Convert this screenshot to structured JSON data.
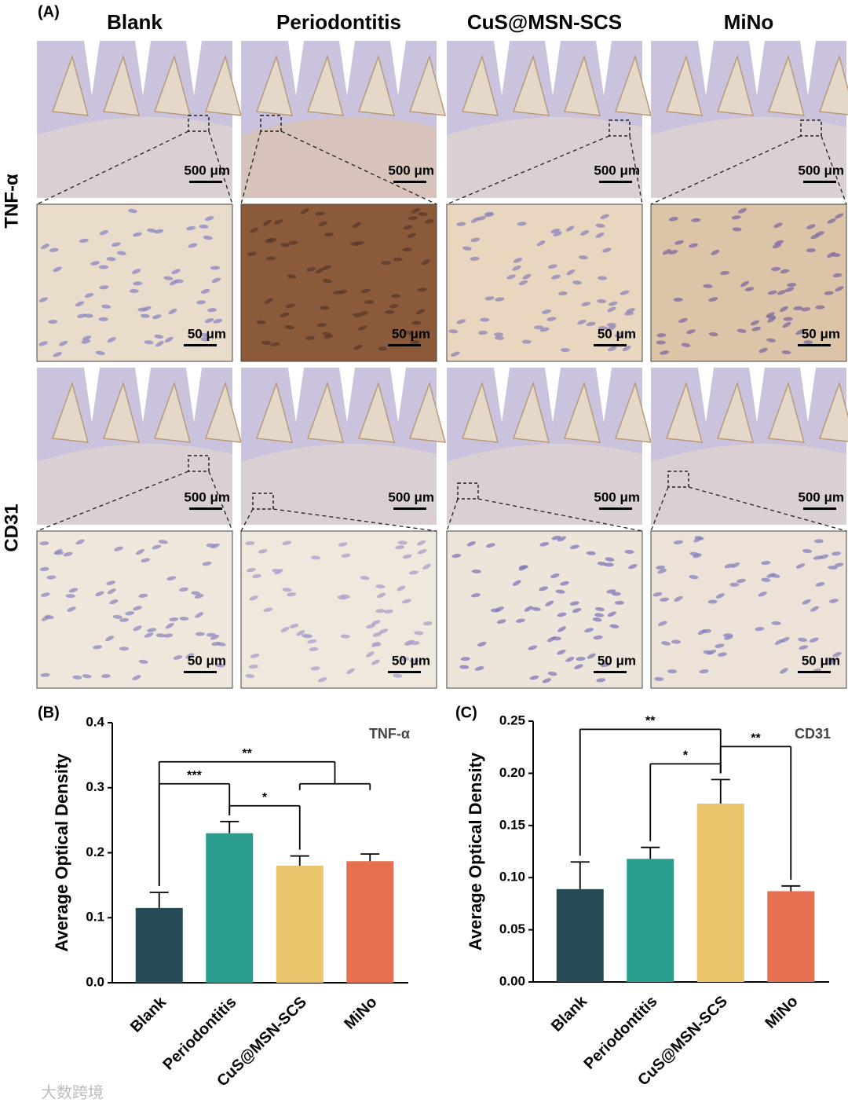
{
  "panel_a": {
    "label": "(A)",
    "columns": [
      "Blank",
      "Periodontitis",
      "CuS@MSN-SCS",
      "MiNo"
    ],
    "rows": [
      "TNF-α",
      "CD31"
    ],
    "scale_overview": "500 μm",
    "scale_zoom": "50 μm"
  },
  "watermark": "大数跨境",
  "chart_data": [
    {
      "type": "bar",
      "panel": "(B)",
      "annotation": "TNF-α",
      "y_label": "Average Optical Density",
      "categories": [
        "Blank",
        "Periodontitis",
        "CuS@MSN-SCS",
        "MiNo"
      ],
      "values": [
        0.115,
        0.23,
        0.18,
        0.187
      ],
      "errors": [
        0.024,
        0.018,
        0.015,
        0.011
      ],
      "colors": [
        "#264b56",
        "#2a9d8f",
        "#e9c46a",
        "#e76f51"
      ],
      "ylim": [
        0,
        0.4
      ],
      "yticks": [
        {
          "value": 0,
          "label": "0.0"
        },
        0.1,
        0.2,
        0.3,
        0.4
      ],
      "comparisons": [
        {
          "label": "*",
          "groups": [
            "Periodontitis",
            "CuS@MSN-SCS"
          ]
        },
        {
          "label": "***",
          "groups": [
            "Blank",
            "Periodontitis"
          ]
        },
        {
          "label": "**",
          "groups": [
            "Blank",
            [
              "CuS@MSN-SCS",
              "MiNo"
            ]
          ]
        }
      ]
    },
    {
      "type": "bar",
      "panel": "(C)",
      "annotation": "CD31",
      "y_label": "Average Optical Density",
      "categories": [
        "Blank",
        "Periodontitis",
        "CuS@MSN-SCS",
        "MiNo"
      ],
      "values": [
        0.089,
        0.118,
        0.171,
        0.087
      ],
      "errors": [
        0.026,
        0.011,
        0.023,
        0.005
      ],
      "colors": [
        "#264b56",
        "#2a9d8f",
        "#e9c46a",
        "#e76f51"
      ],
      "ylim": [
        0,
        0.25
      ],
      "yticks": [
        {
          "value": 0,
          "label": "0.00"
        },
        0.05,
        {
          "value": 0.1,
          "label": "0.10"
        },
        0.15,
        {
          "value": 0.2,
          "label": "0.20"
        },
        0.25
      ],
      "comparisons": [
        {
          "label": "*",
          "groups": [
            "Periodontitis",
            "CuS@MSN-SCS"
          ]
        },
        {
          "label": "**",
          "groups": [
            "CuS@MSN-SCS",
            "MiNo"
          ]
        },
        {
          "label": "**",
          "groups": [
            "Blank",
            "CuS@MSN-SCS"
          ]
        }
      ]
    }
  ]
}
